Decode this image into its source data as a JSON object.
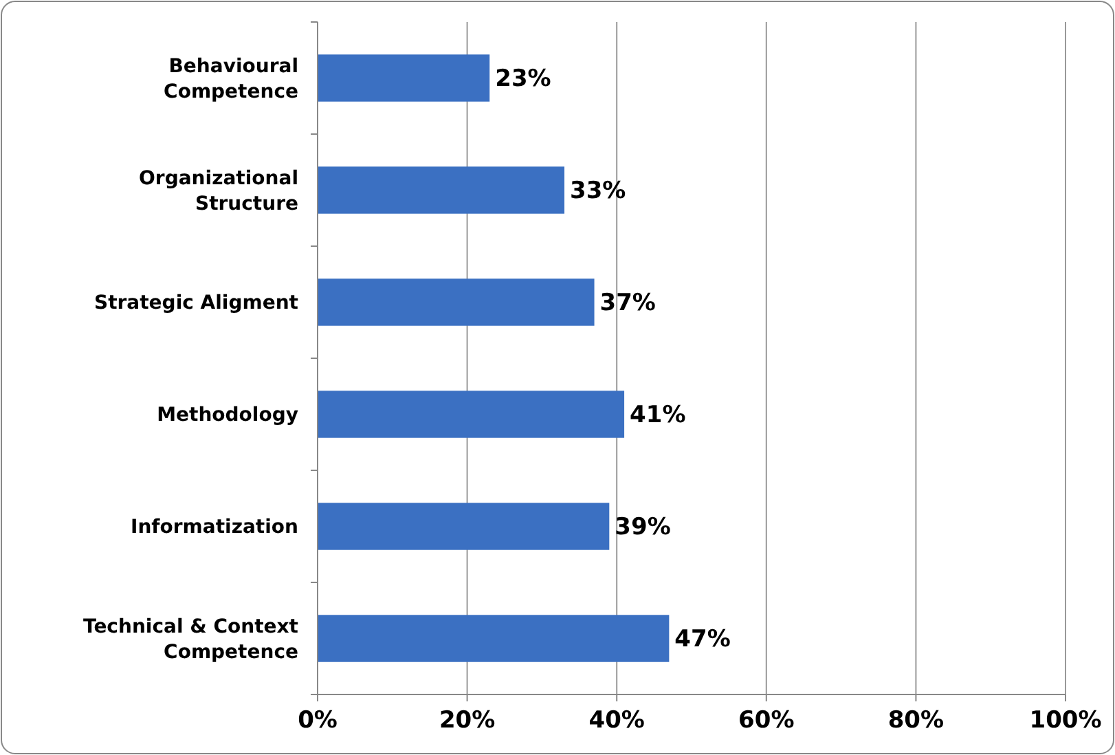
{
  "chart_data": {
    "type": "bar",
    "orientation": "horizontal",
    "categories": [
      "Behavioural Competence",
      "Organizational Structure",
      "Strategic Aligment",
      "Methodology",
      "Informatization",
      "Technical & Context Competence"
    ],
    "values": [
      23,
      33,
      37,
      41,
      39,
      47
    ],
    "value_labels": [
      "23%",
      "33%",
      "37%",
      "41%",
      "39%",
      "47%"
    ],
    "color": "#3b70c2",
    "xlim": [
      0,
      100
    ],
    "xticks": [
      {
        "value": 0,
        "label": "0%"
      },
      {
        "value": 20,
        "label": "20%"
      },
      {
        "value": 40,
        "label": "40%"
      },
      {
        "value": 60,
        "label": "60%"
      },
      {
        "value": 80,
        "label": "80%"
      },
      {
        "value": 100,
        "label": "100%"
      }
    ],
    "grid": "x"
  }
}
